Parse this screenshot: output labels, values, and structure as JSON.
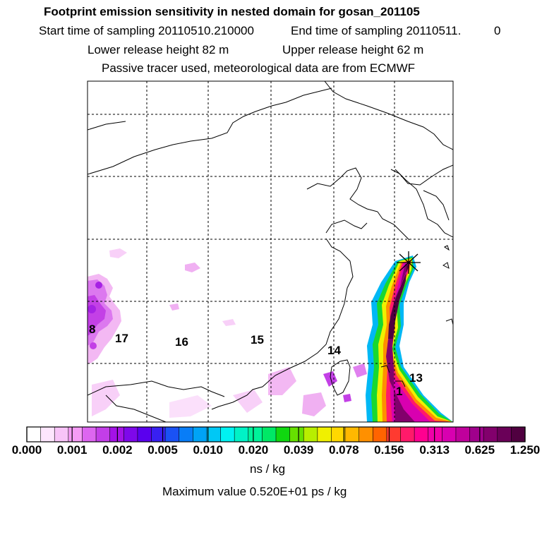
{
  "header": {
    "title": "Footprint emission sensitivity in nested domain for gosan_201105",
    "start_time": "Start time of sampling 20110510.210000",
    "end_time": "End time of sampling 20110511.",
    "end_time_suffix": "0",
    "lower_release": "Lower release height   82 m",
    "upper_release": "Upper release height   62 m",
    "passive_tracer": "Passive tracer used, meteorological data are from ECMWF"
  },
  "map": {
    "day_labels": [
      "8",
      "17",
      "16",
      "15",
      "14",
      "13",
      "1"
    ]
  },
  "legend": {
    "colors": [
      "#ffffff",
      "#fde6fd",
      "#f8c4f8",
      "#f59cf5",
      "#dd66f0",
      "#c33ee8",
      "#a412e6",
      "#7e08ea",
      "#5a00ee",
      "#3820f2",
      "#1a52f5",
      "#087df7",
      "#00a3f6",
      "#00c8f5",
      "#00f2f2",
      "#00f2c6",
      "#00f29a",
      "#00e866",
      "#10d810",
      "#66e000",
      "#b8ee00",
      "#f0f000",
      "#ffd800",
      "#ffb800",
      "#ff9000",
      "#ff6400",
      "#ff3a30",
      "#ff1a6a",
      "#ff0090",
      "#f000a8",
      "#d800b0",
      "#c0009c",
      "#a0008c",
      "#82006c",
      "#6a0058",
      "#500040"
    ],
    "ticks": [
      "0.000",
      "0.001",
      "0.002",
      "0.005",
      "0.010",
      "0.020",
      "0.039",
      "0.078",
      "0.156",
      "0.313",
      "0.625",
      "1.250"
    ],
    "unit": "ns / kg",
    "max_value": "Maximum value  0.520E+01 ps / kg"
  }
}
